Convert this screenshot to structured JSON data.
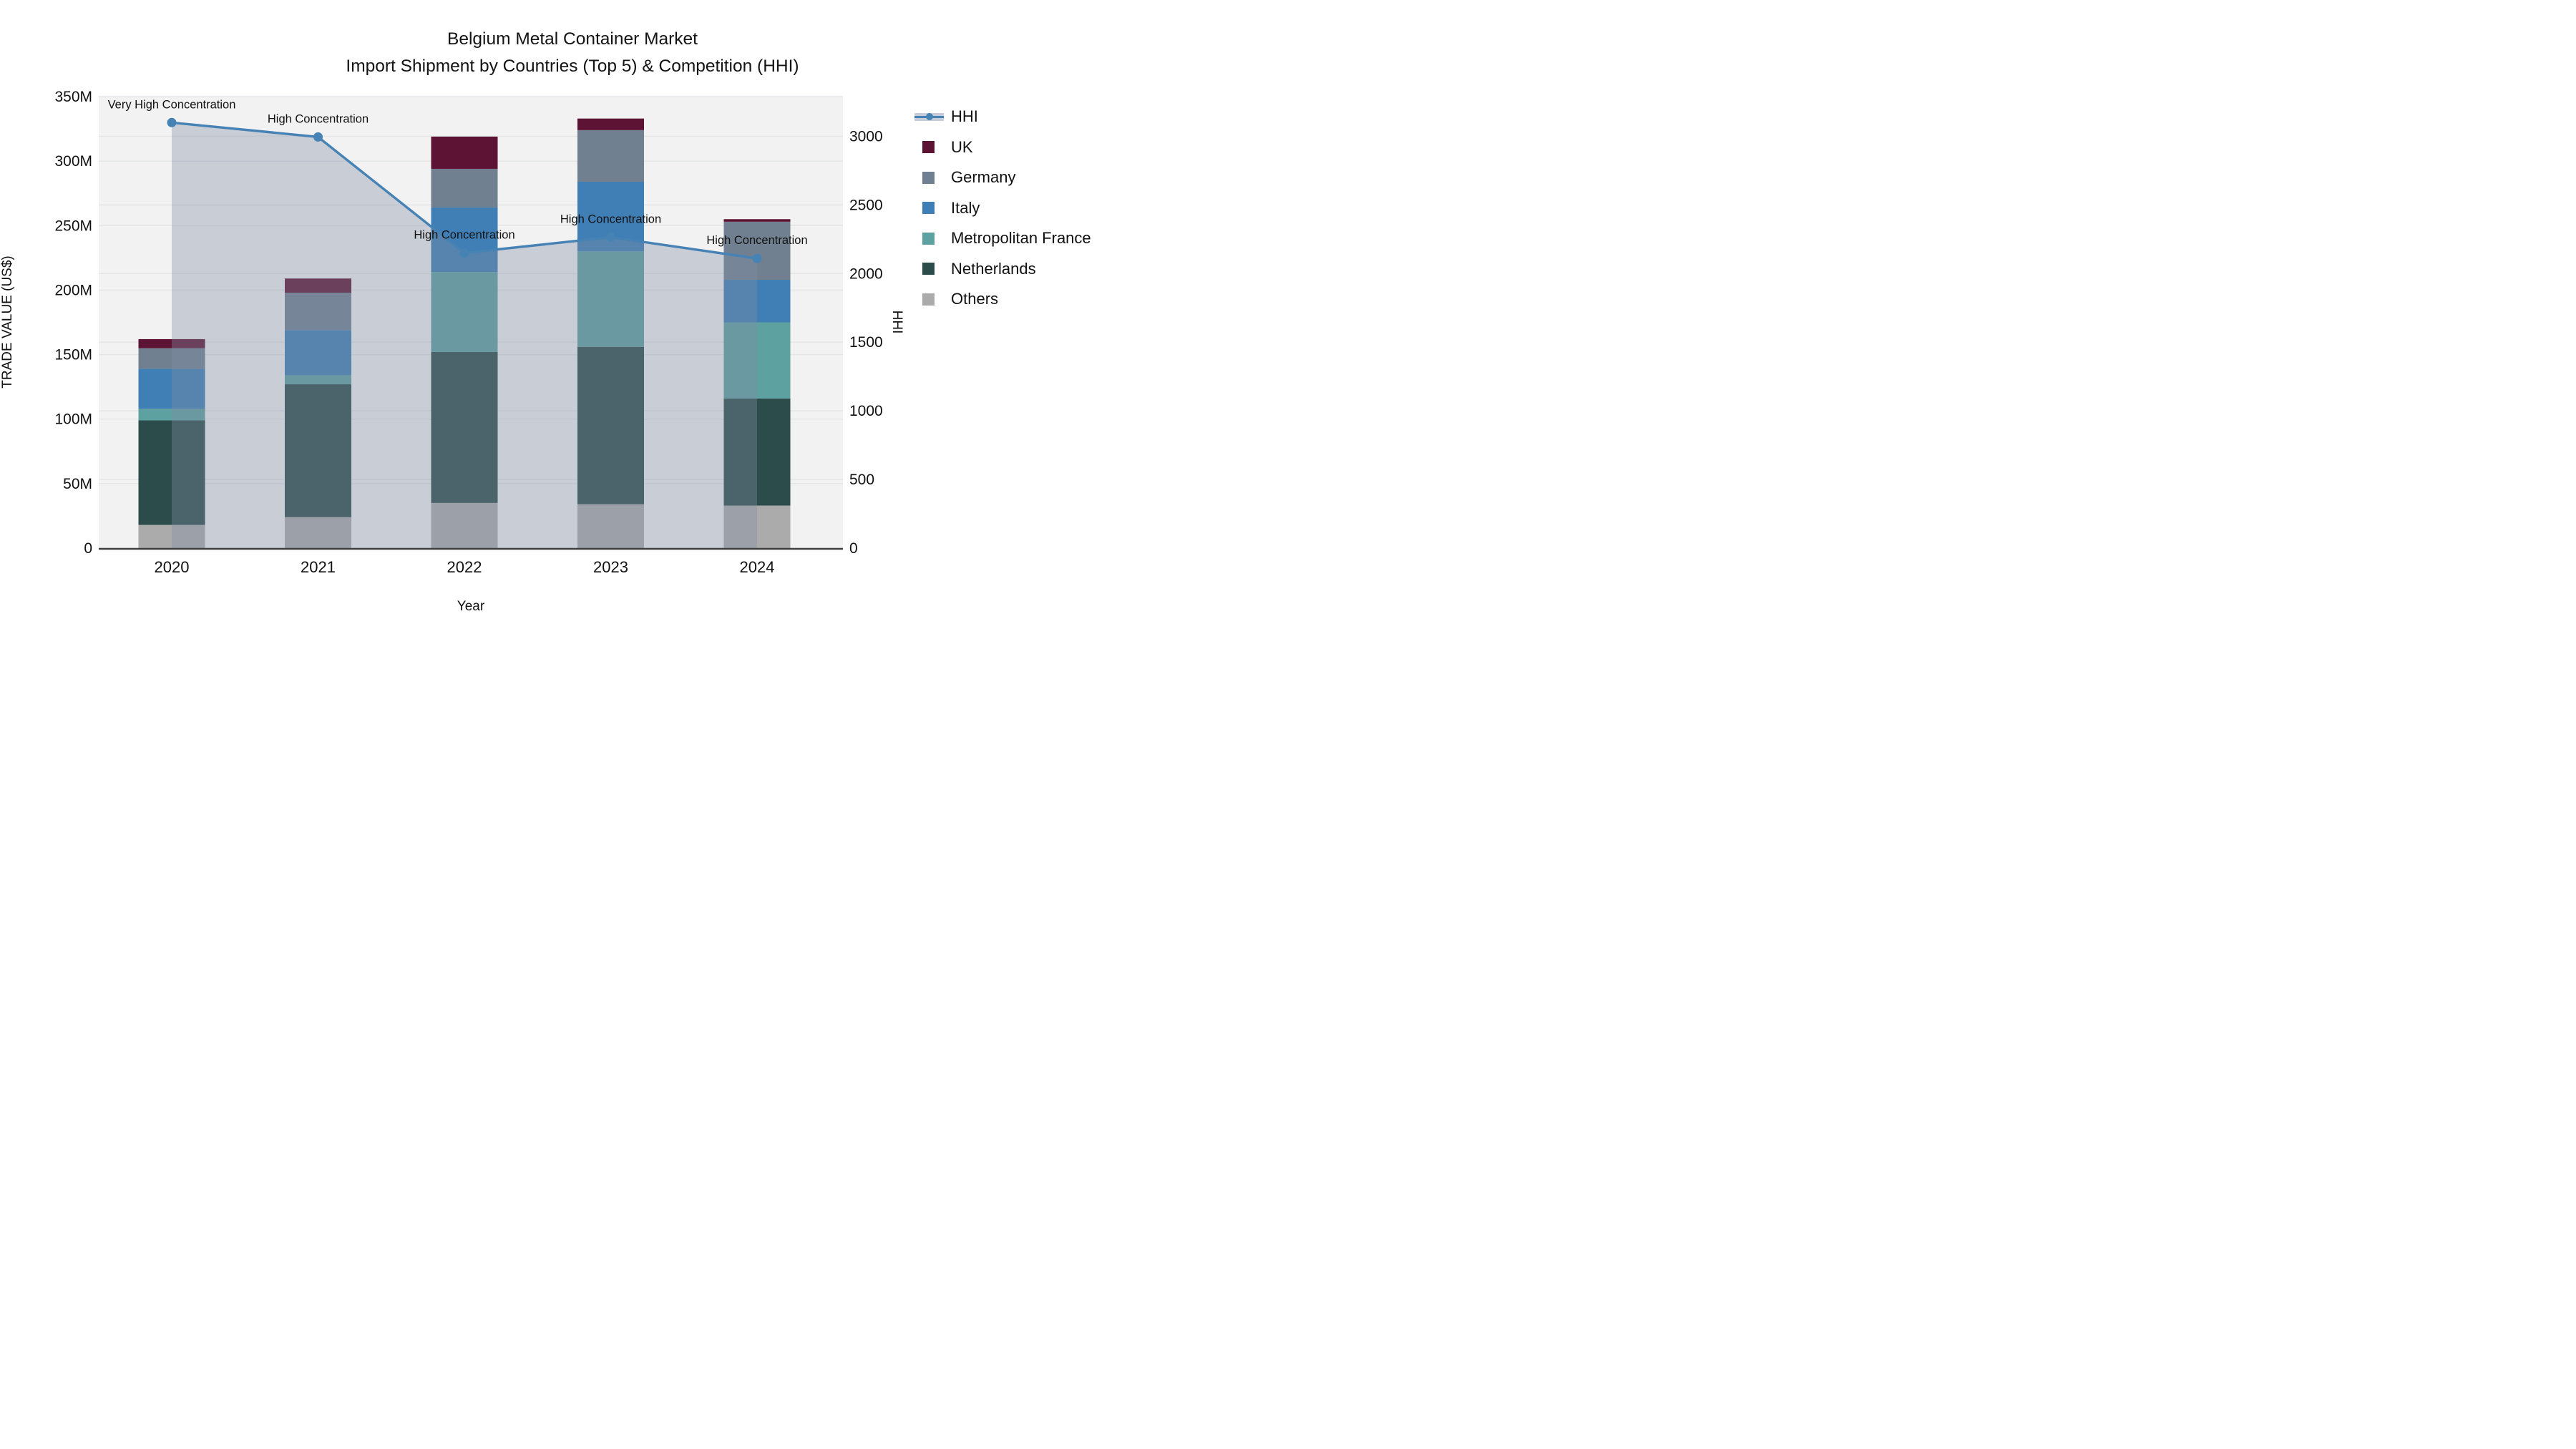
{
  "title": {
    "line1": "Belgium Metal Container Market",
    "line2": "Import Shipment by Countries (Top 5) & Competition (HHI)"
  },
  "axes": {
    "x": {
      "title": "Year",
      "categories": [
        "2020",
        "2021",
        "2022",
        "2023",
        "2024"
      ]
    },
    "y_left": {
      "title": "TRADE VALUE (US$)",
      "ticks": [
        {
          "value": 0,
          "label": "0"
        },
        {
          "value": 50,
          "label": "50M"
        },
        {
          "value": 100,
          "label": "100M"
        },
        {
          "value": 150,
          "label": "150M"
        },
        {
          "value": 200,
          "label": "200M"
        },
        {
          "value": 250,
          "label": "250M"
        },
        {
          "value": 300,
          "label": "300M"
        },
        {
          "value": 350,
          "label": "350M"
        }
      ]
    },
    "y_right": {
      "title": "HHI",
      "ticks": [
        {
          "value": 0,
          "label": "0"
        },
        {
          "value": 500,
          "label": "500"
        },
        {
          "value": 1000,
          "label": "1000"
        },
        {
          "value": 1500,
          "label": "1500"
        },
        {
          "value": 2000,
          "label": "2000"
        },
        {
          "value": 2500,
          "label": "2500"
        },
        {
          "value": 3000,
          "label": "3000"
        }
      ]
    }
  },
  "legend": {
    "items": [
      {
        "label": "HHI",
        "type": "line",
        "color": "#4682b4"
      },
      {
        "label": "UK",
        "type": "box",
        "color": "#5d1434"
      },
      {
        "label": "Germany",
        "type": "box",
        "color": "#708090"
      },
      {
        "label": "Italy",
        "type": "box",
        "color": "#3f7fb5"
      },
      {
        "label": "Metropolitan France",
        "type": "box",
        "color": "#5da1a0"
      },
      {
        "label": "Netherlands",
        "type": "box",
        "color": "#2c4c4b"
      },
      {
        "label": "Others",
        "type": "box",
        "color": "#ababab"
      }
    ]
  },
  "colors": {
    "plot_bg": "#f2f2f2",
    "grid": "#e3e5e7",
    "axis_line": "#3f3f3f",
    "hhi_line": "#4682b4",
    "hhi_fill": "rgba(130,142,162,0.37)"
  },
  "chart_data": {
    "type": "bar+line",
    "title": "Belgium Metal Container Market — Import Shipment by Countries (Top 5) & Competition (HHI)",
    "categories": [
      2020,
      2021,
      2022,
      2023,
      2024
    ],
    "unit_left": "M US$",
    "ylim_left": [
      0,
      350
    ],
    "ylim_right": [
      0,
      3289
    ],
    "grid": true,
    "legend_position": "right",
    "stack_order_bottom_to_top": [
      "Others",
      "Netherlands",
      "Metropolitan France",
      "Italy",
      "Germany",
      "UK"
    ],
    "series": [
      {
        "name": "Others",
        "color": "#ababab",
        "values": [
          18,
          24,
          35,
          34,
          33
        ]
      },
      {
        "name": "Netherlands",
        "color": "#2c4c4b",
        "values": [
          81,
          103,
          117,
          122,
          83
        ]
      },
      {
        "name": "Metropolitan France",
        "color": "#5da1a0",
        "values": [
          9,
          7,
          62,
          74,
          59
        ]
      },
      {
        "name": "Italy",
        "color": "#3f7fb5",
        "values": [
          31,
          35,
          50,
          54,
          33
        ]
      },
      {
        "name": "Germany",
        "color": "#708090",
        "values": [
          16,
          29,
          30,
          40,
          45
        ]
      },
      {
        "name": "UK",
        "color": "#5d1434",
        "values": [
          7,
          11,
          25,
          9,
          2
        ]
      }
    ],
    "bar_totals": [
      162,
      209,
      319,
      333,
      255
    ],
    "line_series": {
      "name": "HHI",
      "axis": "right",
      "color": "#4682b4",
      "fill": "tozeroy",
      "values": [
        3100,
        2995,
        2150,
        2265,
        2110
      ]
    },
    "annotations": [
      {
        "x": 2020,
        "text": "Very High Concentration"
      },
      {
        "x": 2021,
        "text": "High Concentration"
      },
      {
        "x": 2022,
        "text": "High Concentration"
      },
      {
        "x": 2023,
        "text": "High Concentration"
      },
      {
        "x": 2024,
        "text": "High Concentration"
      }
    ]
  }
}
